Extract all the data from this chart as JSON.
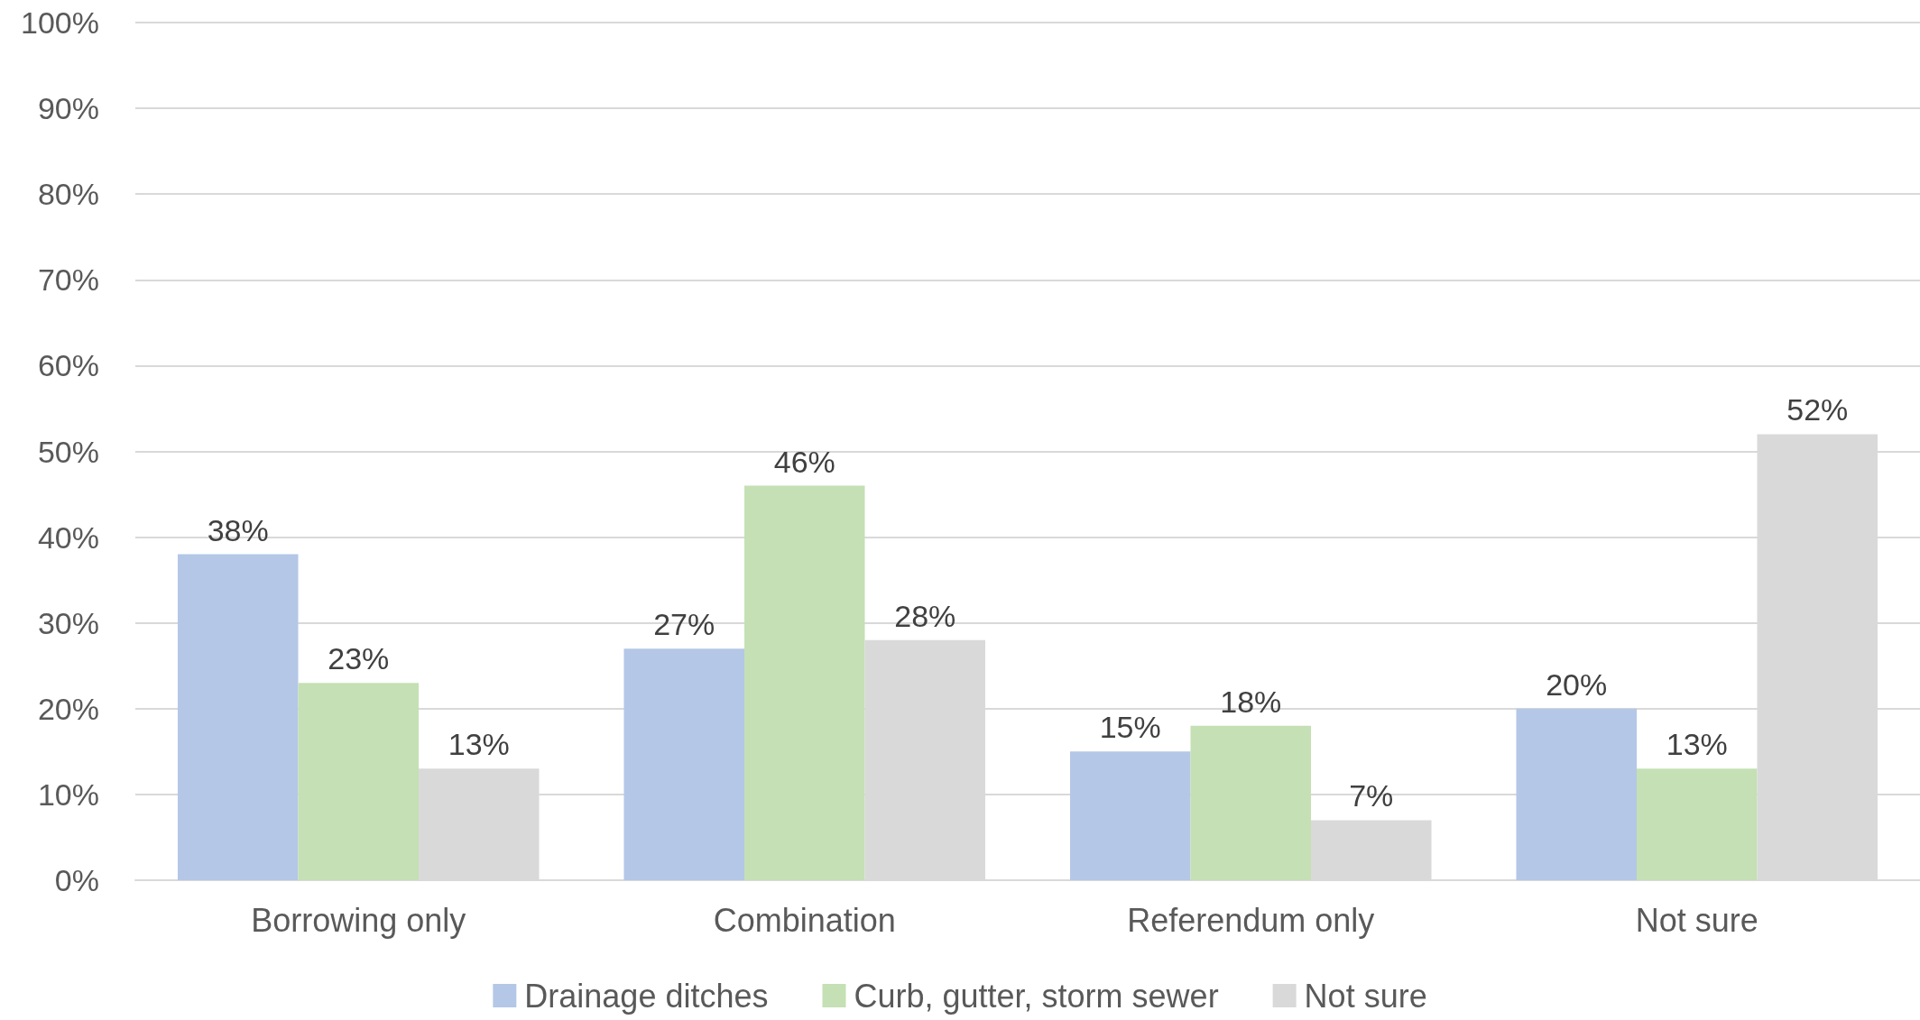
{
  "chart_data": {
    "type": "bar",
    "categories": [
      "Borrowing only",
      "Combination",
      "Referendum only",
      "Not sure"
    ],
    "series": [
      {
        "name": "Drainage ditches",
        "color": "#b4c7e7",
        "values": [
          38,
          27,
          15,
          20
        ],
        "value_labels": [
          "38%",
          "27%",
          "15%",
          "20%"
        ]
      },
      {
        "name": "Curb, gutter, storm sewer",
        "color": "#c5e0b4",
        "values": [
          23,
          46,
          18,
          13
        ],
        "value_labels": [
          "23%",
          "46%",
          "18%",
          "13%"
        ]
      },
      {
        "name": "Not sure",
        "color": "#d9d9d9",
        "values": [
          13,
          28,
          7,
          52
        ],
        "value_labels": [
          "13%",
          "28%",
          "7%",
          "52%"
        ]
      }
    ],
    "ylim": [
      0,
      100
    ],
    "yticks": [
      {
        "value": 0,
        "label": "0%"
      },
      {
        "value": 10,
        "label": "10%"
      },
      {
        "value": 20,
        "label": "20%"
      },
      {
        "value": 30,
        "label": "30%"
      },
      {
        "value": 40,
        "label": "40%"
      },
      {
        "value": 50,
        "label": "50%"
      },
      {
        "value": 60,
        "label": "60%"
      },
      {
        "value": 70,
        "label": "70%"
      },
      {
        "value": 80,
        "label": "80%"
      },
      {
        "value": 90,
        "label": "90%"
      },
      {
        "value": 100,
        "label": "100%"
      }
    ],
    "grid": "y",
    "legend": "bottom"
  }
}
